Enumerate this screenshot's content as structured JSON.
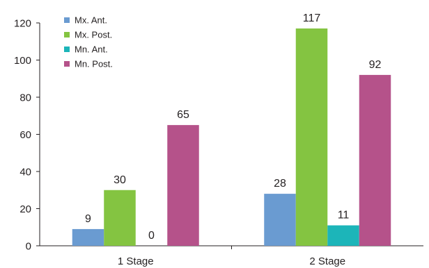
{
  "chart_data": {
    "type": "bar",
    "categories": [
      "1 Stage",
      "2 Stage"
    ],
    "series": [
      {
        "name": "Mx. Ant.",
        "values": [
          9,
          28
        ],
        "color": "#6a9bd1"
      },
      {
        "name": "Mx. Post.",
        "values": [
          30,
          117
        ],
        "color": "#84c441"
      },
      {
        "name": "Mn. Ant.",
        "values": [
          0,
          11
        ],
        "color": "#1cb5b9"
      },
      {
        "name": "Mn. Post.",
        "values": [
          65,
          92
        ],
        "color": "#b5528a"
      }
    ],
    "data_labels": [
      [
        "9",
        "28"
      ],
      [
        "30",
        "117"
      ],
      [
        "0",
        "11"
      ],
      [
        "65",
        "92"
      ]
    ],
    "yticks": [
      0,
      20,
      40,
      60,
      80,
      100,
      120
    ],
    "ylim": [
      0,
      120
    ],
    "legend_position": "top-left",
    "grid": false
  }
}
